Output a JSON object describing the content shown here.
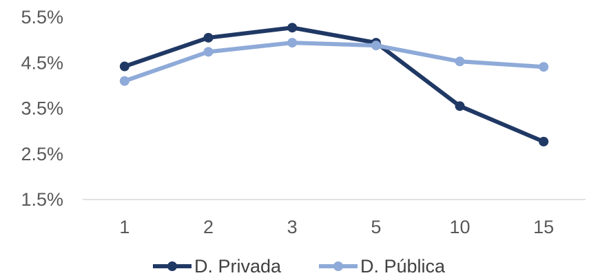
{
  "chart_data": {
    "type": "line",
    "categories": [
      "1",
      "2",
      "3",
      "5",
      "10",
      "15"
    ],
    "series": [
      {
        "name": "D. Privada",
        "color": "#203864",
        "values": [
          4.42,
          5.05,
          5.27,
          4.94,
          3.55,
          2.77
        ]
      },
      {
        "name": "D. Pública",
        "color": "#8EAAD8",
        "values": [
          4.1,
          4.74,
          4.94,
          4.88,
          4.53,
          4.41
        ]
      }
    ],
    "y_ticks": [
      "1.5%",
      "2.5%",
      "3.5%",
      "4.5%",
      "5.5%"
    ],
    "y_tick_values": [
      1.5,
      2.5,
      3.5,
      4.5,
      5.5
    ],
    "ylim": [
      1.5,
      5.5
    ],
    "legend_position": "bottom",
    "grid": false
  }
}
